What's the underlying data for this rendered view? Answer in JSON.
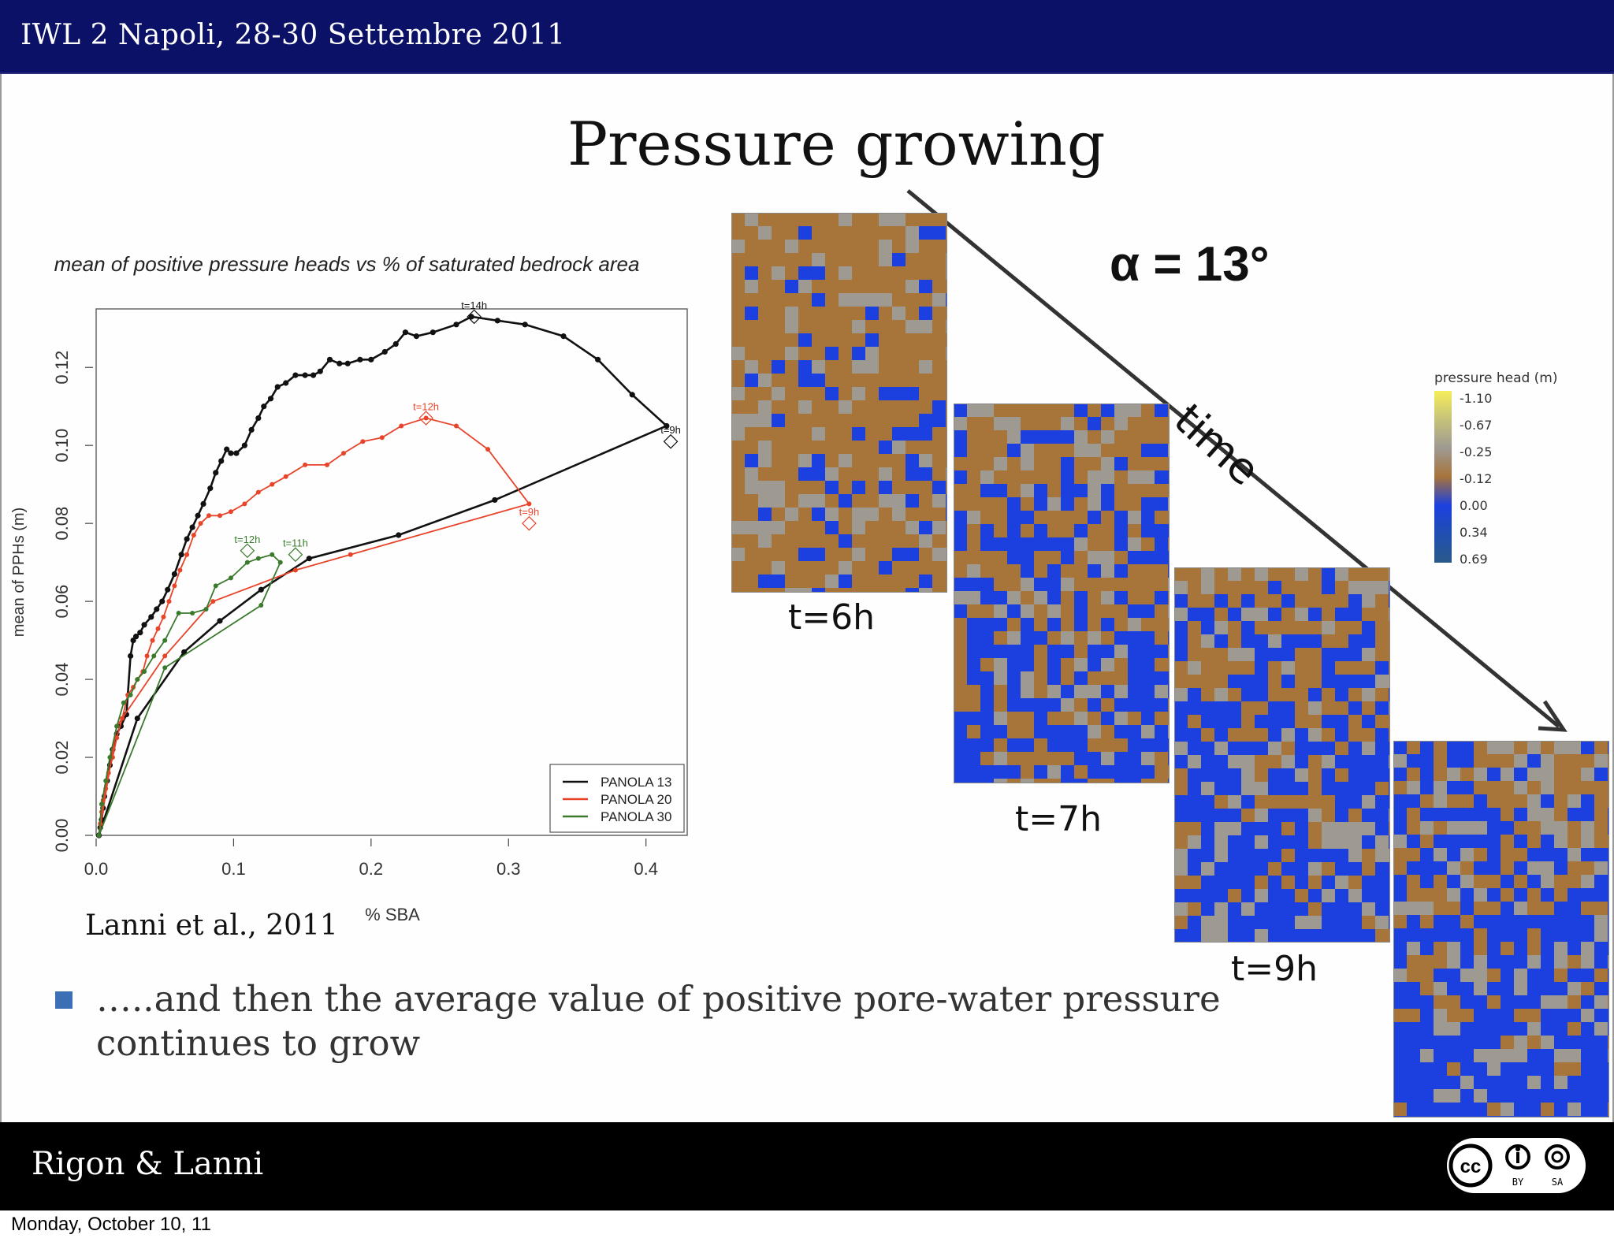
{
  "header": {
    "title": "IWL 2 Napoli, 28-30 Settembre 2011"
  },
  "slide": {
    "title": "Pressure growing",
    "angle_text": "α = 13°",
    "time_label": "time",
    "citation": "Lanni et al., 2011",
    "bullet_prefix": "…..",
    "bullet_text": "and then the average value of positive pore-water pressure continues to grow",
    "panels": [
      {
        "label": "t=6h"
      },
      {
        "label": "t=7h"
      },
      {
        "label": "t=9h"
      }
    ],
    "colorbar": {
      "title": "pressure head (m)",
      "ticks": [
        "-1.10",
        "-0.67",
        "-0.25",
        "-0.12",
        "0.00",
        "0.34",
        "0.69"
      ],
      "colors": [
        "#f5ee5a",
        "#c6c27a",
        "#9e9a92",
        "#a7743a",
        "#1c40e0",
        "#1f4fb0",
        "#2a5a8a"
      ]
    }
  },
  "chart_data": {
    "type": "line",
    "title": "mean of positive pressure heads  vs  % of saturated bedrock area",
    "xlabel": "% SBA",
    "ylabel": "mean of PPHs (m)",
    "xlim": [
      0.0,
      0.43
    ],
    "ylim": [
      0.0,
      0.135
    ],
    "xticks": [
      "0.0",
      "0.1",
      "0.2",
      "0.3",
      "0.4"
    ],
    "yticks": [
      "0.00",
      "0.02",
      "0.04",
      "0.06",
      "0.08",
      "0.10",
      "0.12"
    ],
    "legend_position": "bottom-right",
    "series": [
      {
        "name": "PANOLA 13",
        "color": "#111111",
        "points": [
          [
            0.002,
            0.0
          ],
          [
            0.003,
            0.002
          ],
          [
            0.004,
            0.004
          ],
          [
            0.005,
            0.007
          ],
          [
            0.006,
            0.01
          ],
          [
            0.008,
            0.014
          ],
          [
            0.01,
            0.018
          ],
          [
            0.012,
            0.022
          ],
          [
            0.015,
            0.026
          ],
          [
            0.018,
            0.028
          ],
          [
            0.022,
            0.031
          ],
          [
            0.025,
            0.046
          ],
          [
            0.027,
            0.05
          ],
          [
            0.029,
            0.051
          ],
          [
            0.032,
            0.052
          ],
          [
            0.035,
            0.054
          ],
          [
            0.04,
            0.056
          ],
          [
            0.044,
            0.058
          ],
          [
            0.048,
            0.06
          ],
          [
            0.052,
            0.063
          ],
          [
            0.057,
            0.067
          ],
          [
            0.062,
            0.072
          ],
          [
            0.066,
            0.076
          ],
          [
            0.07,
            0.079
          ],
          [
            0.074,
            0.082
          ],
          [
            0.078,
            0.085
          ],
          [
            0.083,
            0.089
          ],
          [
            0.087,
            0.093
          ],
          [
            0.091,
            0.096
          ],
          [
            0.095,
            0.099
          ],
          [
            0.098,
            0.098
          ],
          [
            0.102,
            0.098
          ],
          [
            0.108,
            0.1
          ],
          [
            0.113,
            0.104
          ],
          [
            0.118,
            0.107
          ],
          [
            0.122,
            0.11
          ],
          [
            0.127,
            0.112
          ],
          [
            0.132,
            0.115
          ],
          [
            0.138,
            0.116
          ],
          [
            0.145,
            0.118
          ],
          [
            0.152,
            0.118
          ],
          [
            0.158,
            0.118
          ],
          [
            0.163,
            0.119
          ],
          [
            0.17,
            0.122
          ],
          [
            0.177,
            0.121
          ],
          [
            0.183,
            0.121
          ],
          [
            0.192,
            0.122
          ],
          [
            0.2,
            0.122
          ],
          [
            0.21,
            0.124
          ],
          [
            0.218,
            0.126
          ],
          [
            0.225,
            0.129
          ],
          [
            0.233,
            0.128
          ],
          [
            0.245,
            0.129
          ],
          [
            0.262,
            0.131
          ],
          [
            0.273,
            0.133
          ],
          [
            0.292,
            0.132
          ],
          [
            0.312,
            0.131
          ],
          [
            0.34,
            0.128
          ],
          [
            0.365,
            0.122
          ],
          [
            0.39,
            0.113
          ],
          [
            0.415,
            0.105
          ],
          [
            0.29,
            0.086
          ],
          [
            0.22,
            0.077
          ],
          [
            0.155,
            0.071
          ],
          [
            0.12,
            0.063
          ],
          [
            0.09,
            0.055
          ],
          [
            0.064,
            0.047
          ],
          [
            0.03,
            0.03
          ],
          [
            0.002,
            0.0
          ]
        ]
      },
      {
        "name": "PANOLA 20",
        "color": "#e8442a",
        "points": [
          [
            0.002,
            0.0
          ],
          [
            0.003,
            0.003
          ],
          [
            0.004,
            0.006
          ],
          [
            0.005,
            0.009
          ],
          [
            0.007,
            0.012
          ],
          [
            0.009,
            0.016
          ],
          [
            0.012,
            0.02
          ],
          [
            0.015,
            0.025
          ],
          [
            0.019,
            0.03
          ],
          [
            0.023,
            0.036
          ],
          [
            0.027,
            0.038
          ],
          [
            0.03,
            0.04
          ],
          [
            0.034,
            0.042
          ],
          [
            0.037,
            0.046
          ],
          [
            0.041,
            0.05
          ],
          [
            0.045,
            0.053
          ],
          [
            0.049,
            0.056
          ],
          [
            0.053,
            0.06
          ],
          [
            0.057,
            0.064
          ],
          [
            0.061,
            0.068
          ],
          [
            0.066,
            0.072
          ],
          [
            0.071,
            0.077
          ],
          [
            0.076,
            0.08
          ],
          [
            0.082,
            0.082
          ],
          [
            0.09,
            0.082
          ],
          [
            0.098,
            0.083
          ],
          [
            0.108,
            0.085
          ],
          [
            0.118,
            0.088
          ],
          [
            0.128,
            0.09
          ],
          [
            0.138,
            0.092
          ],
          [
            0.152,
            0.095
          ],
          [
            0.168,
            0.095
          ],
          [
            0.18,
            0.098
          ],
          [
            0.194,
            0.101
          ],
          [
            0.208,
            0.102
          ],
          [
            0.222,
            0.105
          ],
          [
            0.24,
            0.107
          ],
          [
            0.262,
            0.105
          ],
          [
            0.285,
            0.099
          ],
          [
            0.315,
            0.085
          ],
          [
            0.185,
            0.072
          ],
          [
            0.145,
            0.068
          ],
          [
            0.085,
            0.06
          ],
          [
            0.05,
            0.046
          ],
          [
            0.015,
            0.028
          ],
          [
            0.002,
            0.0
          ]
        ]
      },
      {
        "name": "PANOLA 30",
        "color": "#3a7a2c",
        "points": [
          [
            0.002,
            0.0
          ],
          [
            0.004,
            0.008
          ],
          [
            0.007,
            0.014
          ],
          [
            0.01,
            0.02
          ],
          [
            0.015,
            0.028
          ],
          [
            0.02,
            0.034
          ],
          [
            0.025,
            0.036
          ],
          [
            0.03,
            0.04
          ],
          [
            0.035,
            0.042
          ],
          [
            0.042,
            0.046
          ],
          [
            0.05,
            0.05
          ],
          [
            0.06,
            0.057
          ],
          [
            0.07,
            0.057
          ],
          [
            0.08,
            0.058
          ],
          [
            0.087,
            0.064
          ],
          [
            0.098,
            0.066
          ],
          [
            0.11,
            0.07
          ],
          [
            0.118,
            0.071
          ],
          [
            0.128,
            0.072
          ],
          [
            0.134,
            0.07
          ],
          [
            0.12,
            0.059
          ],
          [
            0.05,
            0.043
          ],
          [
            0.002,
            0.0
          ]
        ]
      }
    ],
    "annotations": [
      {
        "text": "t=14h",
        "x": 0.275,
        "y": 0.133,
        "color": "#111111"
      },
      {
        "text": "t=9h",
        "x": 0.418,
        "y": 0.101,
        "color": "#111111"
      },
      {
        "text": "t=12h",
        "x": 0.24,
        "y": 0.107,
        "color": "#e8442a"
      },
      {
        "text": "t=9h",
        "x": 0.315,
        "y": 0.08,
        "color": "#e8442a"
      },
      {
        "text": "t=12h",
        "x": 0.11,
        "y": 0.073,
        "color": "#3a7a2c"
      },
      {
        "text": "t=11h",
        "x": 0.145,
        "y": 0.072,
        "color": "#3a7a2c"
      }
    ]
  },
  "footer": {
    "authors": "Rigon & Lanni",
    "license": [
      "BY",
      "SA"
    ]
  },
  "date_stamp": "Monday, October 10, 11"
}
